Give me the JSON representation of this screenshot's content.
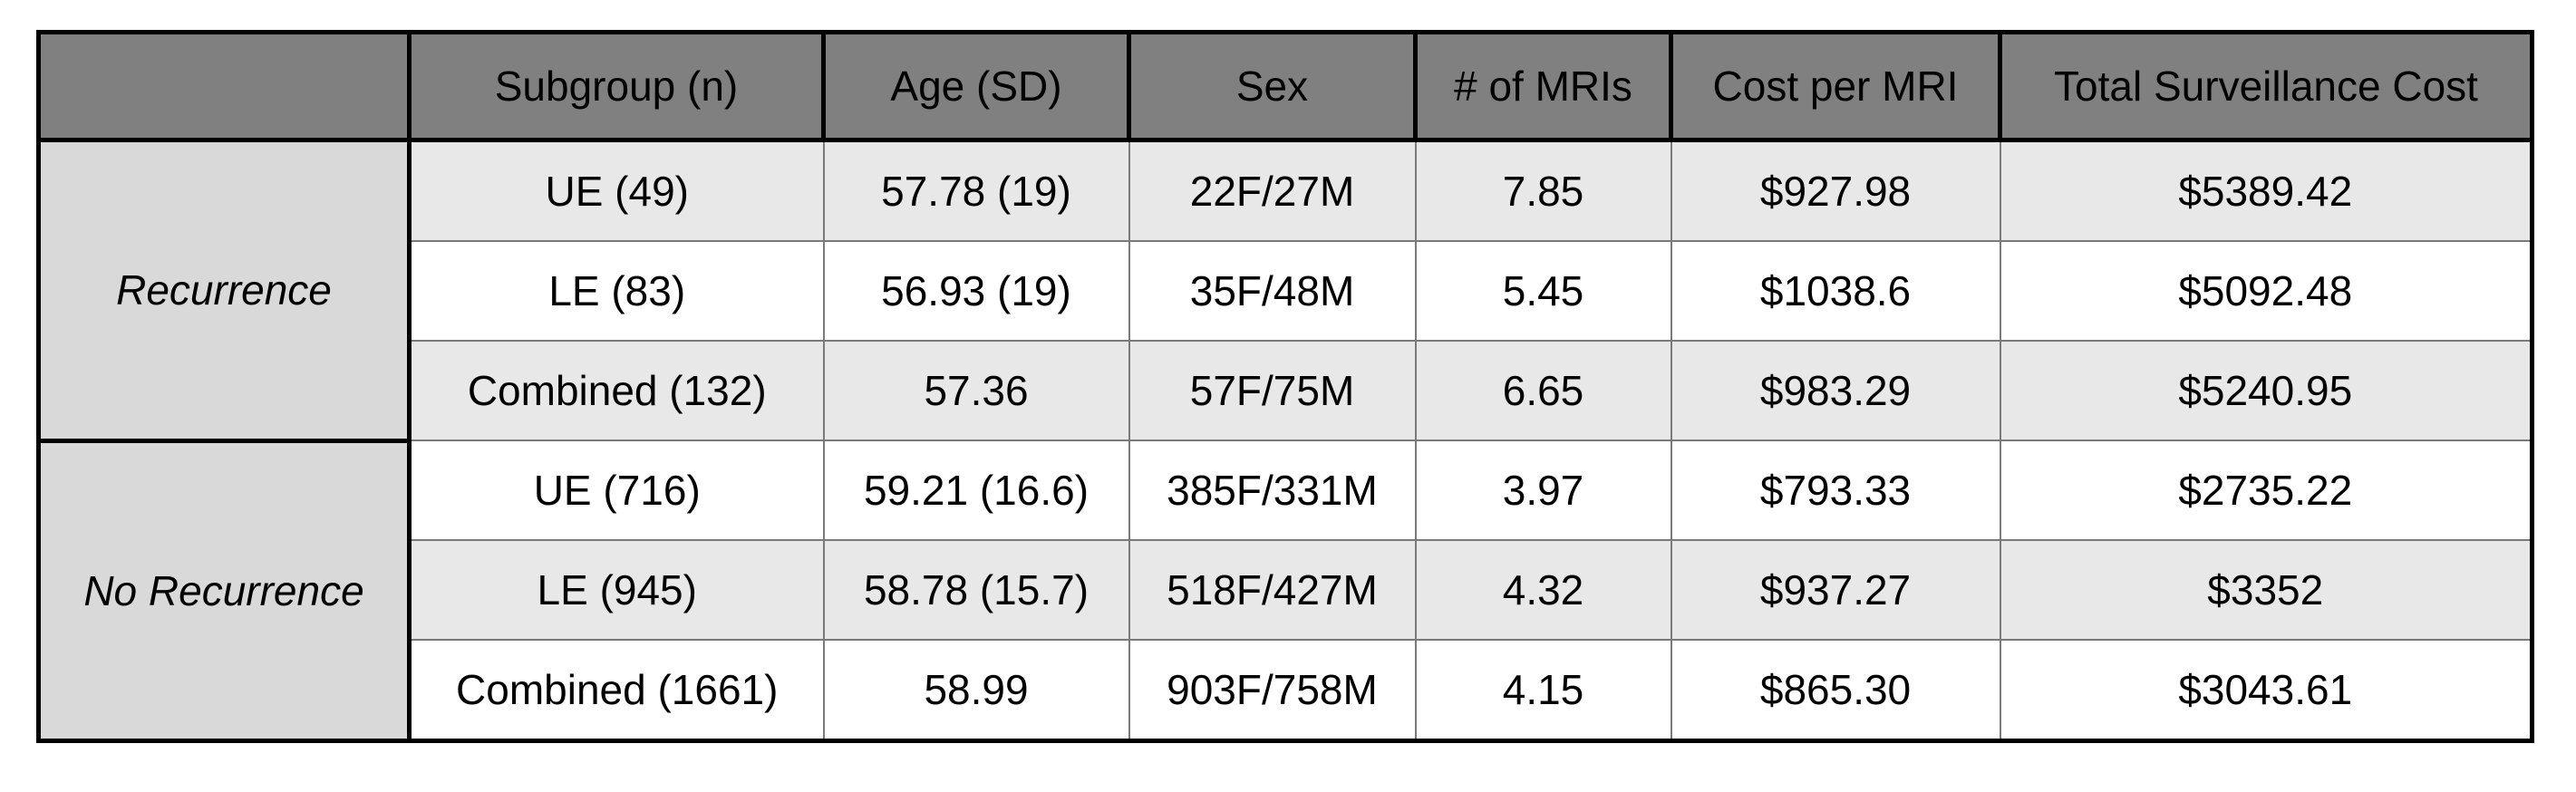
{
  "table": {
    "header": [
      "Subgroup (n)",
      "Age (SD)",
      "Sex",
      "# of MRIs",
      "Cost per MRI",
      "Total Surveillance Cost"
    ],
    "groups": [
      {
        "label": "Recurrence",
        "rows": [
          [
            "UE (49)",
            "57.78 (19)",
            "22F/27M",
            "7.85",
            "$927.98",
            "$5389.42"
          ],
          [
            "LE (83)",
            "56.93 (19)",
            "35F/48M",
            "5.45",
            "$1038.6",
            "$5092.48"
          ],
          [
            "Combined (132)",
            "57.36",
            "57F/75M",
            "6.65",
            "$983.29",
            "$5240.95"
          ]
        ]
      },
      {
        "label": "No Recurrence",
        "rows": [
          [
            "UE (716)",
            "59.21 (16.6)",
            "385F/331M",
            "3.97",
            "$793.33",
            "$2735.22"
          ],
          [
            "LE (945)",
            "58.78 (15.7)",
            "518F/427M",
            "4.32",
            "$937.27",
            "$3352"
          ],
          [
            "Combined (1661)",
            "58.99",
            "903F/758M",
            "4.15",
            "$865.30",
            "$3043.61"
          ]
        ]
      }
    ]
  }
}
